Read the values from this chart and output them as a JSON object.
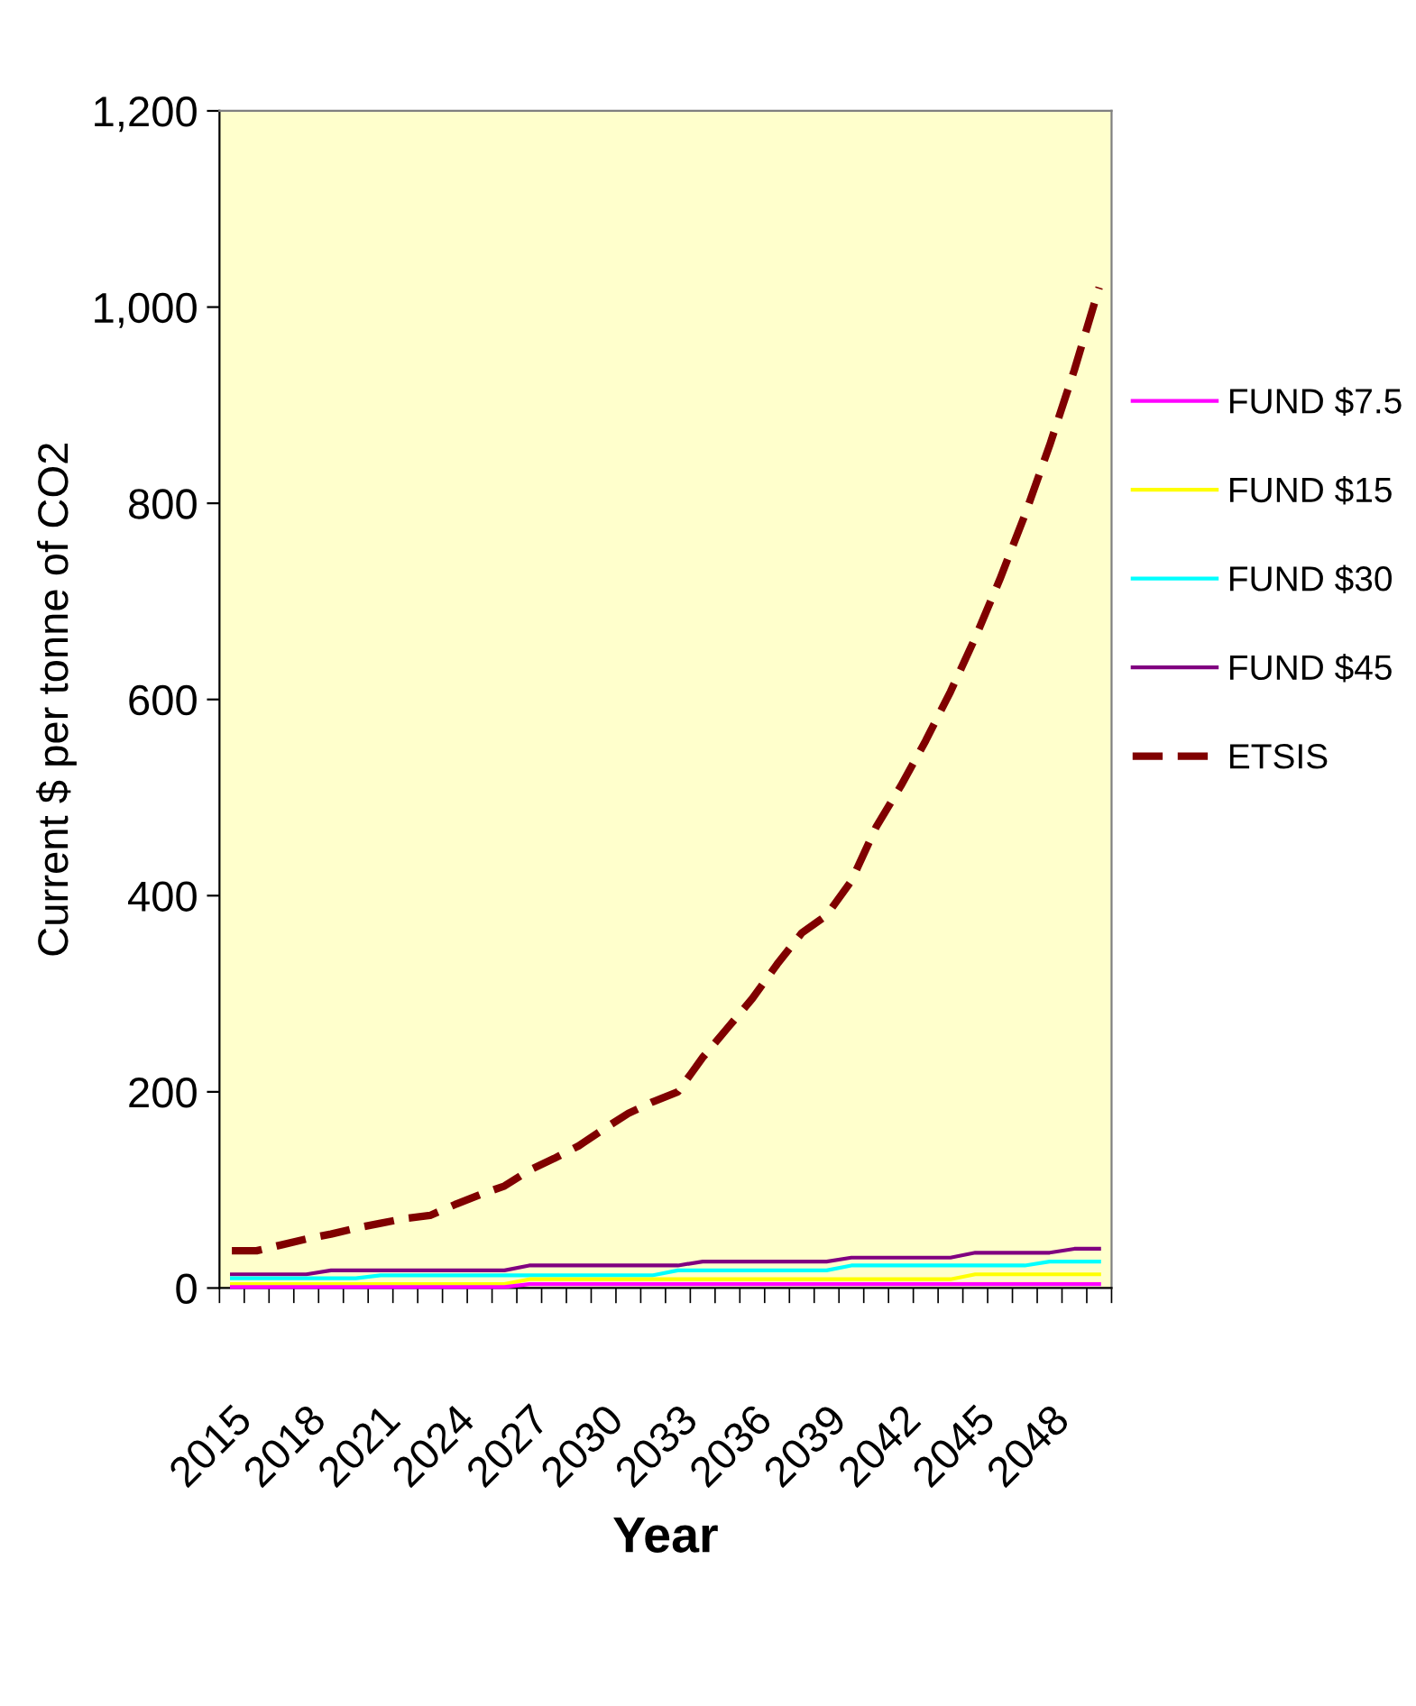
{
  "chart_data": {
    "type": "line",
    "xlabel": "Year",
    "ylabel": "Current $ per tonne of CO2",
    "categories": [
      "2015",
      null,
      null,
      "2018",
      null,
      null,
      "2021",
      null,
      null,
      "2024",
      null,
      null,
      "2027",
      null,
      null,
      "2030",
      null,
      null,
      "2033",
      null,
      null,
      "2036",
      null,
      null,
      "2039",
      null,
      null,
      "2042",
      null,
      null,
      "2045",
      null,
      null,
      "2048",
      null,
      null
    ],
    "series": [
      {
        "name": "FUND $7.5",
        "color": "#ff00ff",
        "line_style": "solid",
        "values": [
          1,
          1,
          1,
          1,
          1,
          1,
          1,
          1,
          1,
          1,
          1,
          1,
          4,
          4,
          4,
          4,
          4,
          4,
          4,
          4,
          4,
          4,
          4,
          4,
          4,
          4,
          4,
          4,
          4,
          4,
          4,
          4,
          4,
          4,
          4,
          4
        ]
      },
      {
        "name": "FUND $15",
        "color": "#ffff00",
        "line_style": "solid",
        "values": [
          4,
          4,
          4,
          4,
          4,
          4,
          4,
          4,
          4,
          4,
          4,
          4,
          9,
          9,
          9,
          9,
          9,
          9,
          9,
          9,
          9,
          9,
          9,
          9,
          9,
          9,
          9,
          9,
          9,
          9,
          14,
          14,
          14,
          14,
          14,
          14
        ]
      },
      {
        "name": "FUND $30",
        "color": "#00ffff",
        "line_style": "solid",
        "values": [
          10,
          10,
          10,
          10,
          10,
          10,
          13,
          13,
          13,
          13,
          13,
          13,
          13,
          13,
          13,
          13,
          13,
          13,
          18,
          18,
          18,
          18,
          18,
          18,
          18,
          23,
          23,
          23,
          23,
          23,
          23,
          23,
          23,
          27,
          27,
          27
        ]
      },
      {
        "name": "FUND $45",
        "color": "#800080",
        "line_style": "solid",
        "values": [
          14,
          14,
          14,
          14,
          18,
          18,
          18,
          18,
          18,
          18,
          18,
          18,
          23,
          23,
          23,
          23,
          23,
          23,
          23,
          27,
          27,
          27,
          27,
          27,
          27,
          31,
          31,
          31,
          31,
          31,
          36,
          36,
          36,
          36,
          40,
          40
        ]
      },
      {
        "name": "ETSIS",
        "color": "#800000",
        "line_style": "dashed",
        "values": [
          38,
          38,
          44,
          50,
          55,
          61,
          66,
          71,
          74,
          85,
          95,
          104,
          120,
          132,
          145,
          162,
          178,
          190,
          200,
          235,
          265,
          295,
          330,
          362,
          380,
          415,
          470,
          512,
          558,
          608,
          663,
          723,
          788,
          859,
          936,
          1020
        ]
      }
    ],
    "ylim": [
      0,
      1200
    ],
    "yticks": [
      0,
      200,
      400,
      600,
      800,
      {
        "value": 1000,
        "label": "1,000"
      },
      {
        "value": 1200,
        "label": "1,200"
      }
    ],
    "grid": false,
    "legend": "right",
    "marker": "none"
  }
}
